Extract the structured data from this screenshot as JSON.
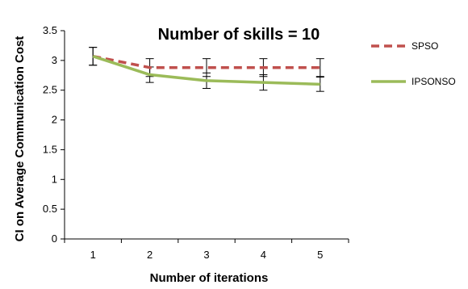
{
  "chart_data": {
    "type": "line",
    "title": "Number of skills = 10",
    "xlabel": "Number of iterations",
    "ylabel": "CI on Average Communication  Cost",
    "x": [
      1,
      2,
      3,
      4,
      5
    ],
    "xlim": [
      0.5,
      5.5
    ],
    "ylim": [
      0,
      3.5
    ],
    "yticks": [
      0,
      0.5,
      1,
      1.5,
      2,
      2.5,
      3,
      3.5
    ],
    "grid": false,
    "legend_position": "right",
    "series": [
      {
        "name": "SPSO",
        "values": [
          3.07,
          2.88,
          2.88,
          2.88,
          2.88
        ],
        "error": [
          0.15,
          0.15,
          0.15,
          0.15,
          0.15
        ],
        "color": "#c0504d",
        "style": "dashed"
      },
      {
        "name": "IPSONSO",
        "values": [
          3.07,
          2.76,
          2.66,
          2.63,
          2.6
        ],
        "error": [
          0.15,
          0.13,
          0.13,
          0.13,
          0.12
        ],
        "color": "#9bbb59",
        "style": "solid"
      }
    ]
  }
}
